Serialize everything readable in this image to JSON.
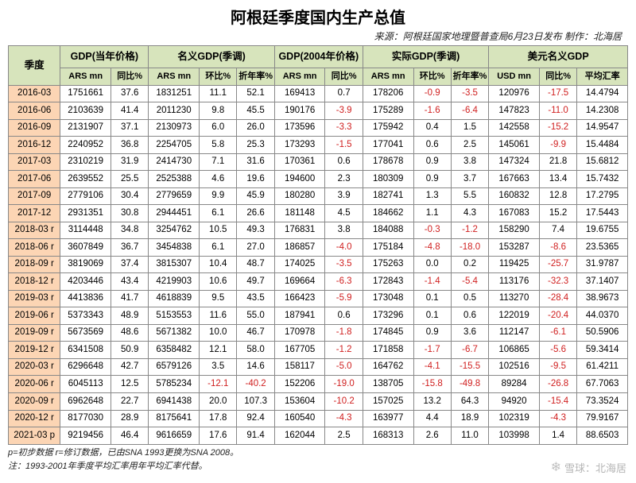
{
  "title": "阿根廷季度国内生产总值",
  "subtitle": "来源：阿根廷国家地理暨普查局6月23日发布  制作：北海居",
  "footnote1": "p=初步数据  r=修订数据，已由SNA 1993更换为SNA 2008。",
  "footnote2": "注：1993-2001年季度平均汇率用年平均汇率代替。",
  "watermark": "雪球：北海居",
  "header_colors": {
    "top_bg": "#d7e4bc",
    "quarter_bg": "#fcd5b4"
  },
  "neg_color": "#d02020",
  "colgroups": [
    {
      "label": "季度",
      "cols": [
        {
          "key": "q",
          "label": "",
          "w": "c-q"
        }
      ],
      "rowspan": 2
    },
    {
      "label": "GDP(当年价格)",
      "cols": [
        {
          "key": "cur_ars",
          "label": "ARS mn",
          "w": "c-n"
        },
        {
          "key": "cur_yoy",
          "label": "同比%",
          "w": "c-p"
        }
      ]
    },
    {
      "label": "名义GDP(季调)",
      "cols": [
        {
          "key": "nom_ars",
          "label": "ARS mn",
          "w": "c-n"
        },
        {
          "key": "nom_qoq",
          "label": "环比%",
          "w": "c-p"
        },
        {
          "key": "nom_ann",
          "label": "折年率%",
          "w": "c-p"
        }
      ]
    },
    {
      "label": "GDP(2004年价格)",
      "cols": [
        {
          "key": "r04_ars",
          "label": "ARS mn",
          "w": "c-n"
        },
        {
          "key": "r04_yoy",
          "label": "同比%",
          "w": "c-p"
        }
      ]
    },
    {
      "label": "实际GDP(季调)",
      "cols": [
        {
          "key": "real_ars",
          "label": "ARS mn",
          "w": "c-n"
        },
        {
          "key": "real_qoq",
          "label": "环比%",
          "w": "c-p"
        },
        {
          "key": "real_ann",
          "label": "折年率%",
          "w": "c-p"
        }
      ]
    },
    {
      "label": "美元名义GDP",
      "cols": [
        {
          "key": "usd_mn",
          "label": "USD mn",
          "w": "c-n"
        },
        {
          "key": "usd_yoy",
          "label": "同比%",
          "w": "c-p"
        },
        {
          "key": "usd_fx",
          "label": "平均汇率",
          "w": "c-n"
        }
      ]
    }
  ],
  "rows": [
    {
      "q": "2016-03",
      "cur_ars": "1751661",
      "cur_yoy": "37.6",
      "nom_ars": "1831251",
      "nom_qoq": "11.1",
      "nom_ann": "52.1",
      "r04_ars": "169413",
      "r04_yoy": "0.7",
      "real_ars": "178206",
      "real_qoq": "-0.9",
      "real_ann": "-3.5",
      "usd_mn": "120976",
      "usd_yoy": "-17.5",
      "usd_fx": "14.4794"
    },
    {
      "q": "2016-06",
      "cur_ars": "2103639",
      "cur_yoy": "41.4",
      "nom_ars": "2011230",
      "nom_qoq": "9.8",
      "nom_ann": "45.5",
      "r04_ars": "190176",
      "r04_yoy": "-3.9",
      "real_ars": "175289",
      "real_qoq": "-1.6",
      "real_ann": "-6.4",
      "usd_mn": "147823",
      "usd_yoy": "-11.0",
      "usd_fx": "14.2308"
    },
    {
      "q": "2016-09",
      "cur_ars": "2131907",
      "cur_yoy": "37.1",
      "nom_ars": "2130973",
      "nom_qoq": "6.0",
      "nom_ann": "26.0",
      "r04_ars": "173596",
      "r04_yoy": "-3.3",
      "real_ars": "175942",
      "real_qoq": "0.4",
      "real_ann": "1.5",
      "usd_mn": "142558",
      "usd_yoy": "-15.2",
      "usd_fx": "14.9547"
    },
    {
      "q": "2016-12",
      "cur_ars": "2240952",
      "cur_yoy": "36.8",
      "nom_ars": "2254705",
      "nom_qoq": "5.8",
      "nom_ann": "25.3",
      "r04_ars": "173293",
      "r04_yoy": "-1.5",
      "real_ars": "177041",
      "real_qoq": "0.6",
      "real_ann": "2.5",
      "usd_mn": "145061",
      "usd_yoy": "-9.9",
      "usd_fx": "15.4484"
    },
    {
      "q": "2017-03",
      "cur_ars": "2310219",
      "cur_yoy": "31.9",
      "nom_ars": "2414730",
      "nom_qoq": "7.1",
      "nom_ann": "31.6",
      "r04_ars": "170361",
      "r04_yoy": "0.6",
      "real_ars": "178678",
      "real_qoq": "0.9",
      "real_ann": "3.8",
      "usd_mn": "147324",
      "usd_yoy": "21.8",
      "usd_fx": "15.6812"
    },
    {
      "q": "2017-06",
      "cur_ars": "2639552",
      "cur_yoy": "25.5",
      "nom_ars": "2525388",
      "nom_qoq": "4.6",
      "nom_ann": "19.6",
      "r04_ars": "194600",
      "r04_yoy": "2.3",
      "real_ars": "180309",
      "real_qoq": "0.9",
      "real_ann": "3.7",
      "usd_mn": "167663",
      "usd_yoy": "13.4",
      "usd_fx": "15.7432"
    },
    {
      "q": "2017-09",
      "cur_ars": "2779106",
      "cur_yoy": "30.4",
      "nom_ars": "2779659",
      "nom_qoq": "9.9",
      "nom_ann": "45.9",
      "r04_ars": "180280",
      "r04_yoy": "3.9",
      "real_ars": "182741",
      "real_qoq": "1.3",
      "real_ann": "5.5",
      "usd_mn": "160832",
      "usd_yoy": "12.8",
      "usd_fx": "17.2795"
    },
    {
      "q": "2017-12",
      "cur_ars": "2931351",
      "cur_yoy": "30.8",
      "nom_ars": "2944451",
      "nom_qoq": "6.1",
      "nom_ann": "26.6",
      "r04_ars": "181148",
      "r04_yoy": "4.5",
      "real_ars": "184662",
      "real_qoq": "1.1",
      "real_ann": "4.3",
      "usd_mn": "167083",
      "usd_yoy": "15.2",
      "usd_fx": "17.5443"
    },
    {
      "q": "2018-03 r",
      "cur_ars": "3114448",
      "cur_yoy": "34.8",
      "nom_ars": "3254762",
      "nom_qoq": "10.5",
      "nom_ann": "49.3",
      "r04_ars": "176831",
      "r04_yoy": "3.8",
      "real_ars": "184088",
      "real_qoq": "-0.3",
      "real_ann": "-1.2",
      "usd_mn": "158290",
      "usd_yoy": "7.4",
      "usd_fx": "19.6755"
    },
    {
      "q": "2018-06 r",
      "cur_ars": "3607849",
      "cur_yoy": "36.7",
      "nom_ars": "3454838",
      "nom_qoq": "6.1",
      "nom_ann": "27.0",
      "r04_ars": "186857",
      "r04_yoy": "-4.0",
      "real_ars": "175184",
      "real_qoq": "-4.8",
      "real_ann": "-18.0",
      "usd_mn": "153287",
      "usd_yoy": "-8.6",
      "usd_fx": "23.5365"
    },
    {
      "q": "2018-09 r",
      "cur_ars": "3819069",
      "cur_yoy": "37.4",
      "nom_ars": "3815307",
      "nom_qoq": "10.4",
      "nom_ann": "48.7",
      "r04_ars": "174025",
      "r04_yoy": "-3.5",
      "real_ars": "175263",
      "real_qoq": "0.0",
      "real_ann": "0.2",
      "usd_mn": "119425",
      "usd_yoy": "-25.7",
      "usd_fx": "31.9787"
    },
    {
      "q": "2018-12 r",
      "cur_ars": "4203446",
      "cur_yoy": "43.4",
      "nom_ars": "4219903",
      "nom_qoq": "10.6",
      "nom_ann": "49.7",
      "r04_ars": "169664",
      "r04_yoy": "-6.3",
      "real_ars": "172843",
      "real_qoq": "-1.4",
      "real_ann": "-5.4",
      "usd_mn": "113176",
      "usd_yoy": "-32.3",
      "usd_fx": "37.1407"
    },
    {
      "q": "2019-03 r",
      "cur_ars": "4413836",
      "cur_yoy": "41.7",
      "nom_ars": "4618839",
      "nom_qoq": "9.5",
      "nom_ann": "43.5",
      "r04_ars": "166423",
      "r04_yoy": "-5.9",
      "real_ars": "173048",
      "real_qoq": "0.1",
      "real_ann": "0.5",
      "usd_mn": "113270",
      "usd_yoy": "-28.4",
      "usd_fx": "38.9673"
    },
    {
      "q": "2019-06 r",
      "cur_ars": "5373343",
      "cur_yoy": "48.9",
      "nom_ars": "5153553",
      "nom_qoq": "11.6",
      "nom_ann": "55.0",
      "r04_ars": "187941",
      "r04_yoy": "0.6",
      "real_ars": "173296",
      "real_qoq": "0.1",
      "real_ann": "0.6",
      "usd_mn": "122019",
      "usd_yoy": "-20.4",
      "usd_fx": "44.0370"
    },
    {
      "q": "2019-09 r",
      "cur_ars": "5673569",
      "cur_yoy": "48.6",
      "nom_ars": "5671382",
      "nom_qoq": "10.0",
      "nom_ann": "46.7",
      "r04_ars": "170978",
      "r04_yoy": "-1.8",
      "real_ars": "174845",
      "real_qoq": "0.9",
      "real_ann": "3.6",
      "usd_mn": "112147",
      "usd_yoy": "-6.1",
      "usd_fx": "50.5906"
    },
    {
      "q": "2019-12 r",
      "cur_ars": "6341508",
      "cur_yoy": "50.9",
      "nom_ars": "6358482",
      "nom_qoq": "12.1",
      "nom_ann": "58.0",
      "r04_ars": "167705",
      "r04_yoy": "-1.2",
      "real_ars": "171858",
      "real_qoq": "-1.7",
      "real_ann": "-6.7",
      "usd_mn": "106865",
      "usd_yoy": "-5.6",
      "usd_fx": "59.3414"
    },
    {
      "q": "2020-03 r",
      "cur_ars": "6296648",
      "cur_yoy": "42.7",
      "nom_ars": "6579126",
      "nom_qoq": "3.5",
      "nom_ann": "14.6",
      "r04_ars": "158117",
      "r04_yoy": "-5.0",
      "real_ars": "164762",
      "real_qoq": "-4.1",
      "real_ann": "-15.5",
      "usd_mn": "102516",
      "usd_yoy": "-9.5",
      "usd_fx": "61.4211"
    },
    {
      "q": "2020-06 r",
      "cur_ars": "6045113",
      "cur_yoy": "12.5",
      "nom_ars": "5785234",
      "nom_qoq": "-12.1",
      "nom_ann": "-40.2",
      "r04_ars": "152206",
      "r04_yoy": "-19.0",
      "real_ars": "138705",
      "real_qoq": "-15.8",
      "real_ann": "-49.8",
      "usd_mn": "89284",
      "usd_yoy": "-26.8",
      "usd_fx": "67.7063"
    },
    {
      "q": "2020-09 r",
      "cur_ars": "6962648",
      "cur_yoy": "22.7",
      "nom_ars": "6941438",
      "nom_qoq": "20.0",
      "nom_ann": "107.3",
      "r04_ars": "153604",
      "r04_yoy": "-10.2",
      "real_ars": "157025",
      "real_qoq": "13.2",
      "real_ann": "64.3",
      "usd_mn": "94920",
      "usd_yoy": "-15.4",
      "usd_fx": "73.3524"
    },
    {
      "q": "2020-12 r",
      "cur_ars": "8177030",
      "cur_yoy": "28.9",
      "nom_ars": "8175641",
      "nom_qoq": "17.8",
      "nom_ann": "92.4",
      "r04_ars": "160540",
      "r04_yoy": "-4.3",
      "real_ars": "163977",
      "real_qoq": "4.4",
      "real_ann": "18.9",
      "usd_mn": "102319",
      "usd_yoy": "-4.3",
      "usd_fx": "79.9167"
    },
    {
      "q": "2021-03 p",
      "cur_ars": "9219456",
      "cur_yoy": "46.4",
      "nom_ars": "9616659",
      "nom_qoq": "17.6",
      "nom_ann": "91.4",
      "r04_ars": "162044",
      "r04_yoy": "2.5",
      "real_ars": "168313",
      "real_qoq": "2.6",
      "real_ann": "11.0",
      "usd_mn": "103998",
      "usd_yoy": "1.4",
      "usd_fx": "88.6503"
    }
  ]
}
